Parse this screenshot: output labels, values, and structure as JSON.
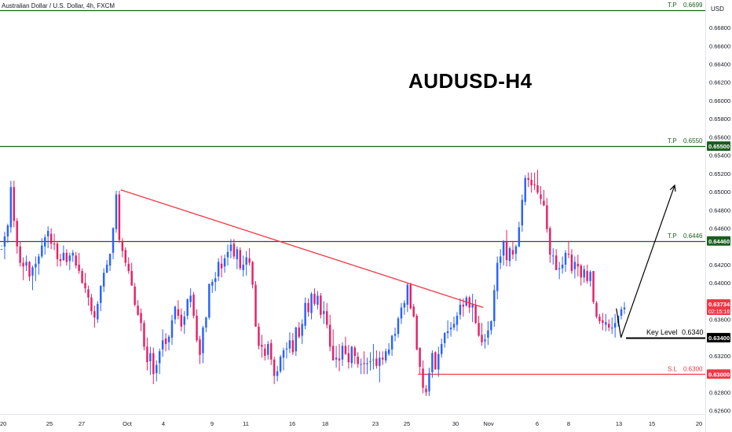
{
  "header": {
    "symbol": "Australian Dollar / U.S. Dollar, 4h, FXCM",
    "title": "AUDUSD-H4",
    "currency": "USD"
  },
  "colors": {
    "up": "#2962ff",
    "down": "#e91e63",
    "green_line": "#1b5e20",
    "red_line": "#f23645",
    "axis_text": "#131722",
    "label_dark": "#000000",
    "label_green": "#1b5e20",
    "label_red": "#f23645",
    "current": "#f23645"
  },
  "chart_data": {
    "type": "candlestick",
    "instrument": "AUDUSD",
    "timeframe": "4h",
    "ylim": [
      0.626,
      0.671
    ],
    "y_ticks": [
      "0.66800",
      "0.66600",
      "0.66400",
      "0.66200",
      "0.66000",
      "0.65800",
      "0.65600",
      "0.65400",
      "0.65200",
      "0.65000",
      "0.64800",
      "0.64600",
      "0.64200",
      "0.64000",
      "0.63800",
      "0.63600",
      "0.63200",
      "0.62800",
      "0.62600"
    ],
    "x_ticks": [
      "20",
      "25",
      "27",
      "Oct",
      "4",
      "9",
      "11",
      "16",
      "18",
      "23",
      "25",
      "30",
      "Nov",
      "6",
      "8",
      "13",
      "15",
      "20"
    ],
    "levels": [
      {
        "id": "tp3",
        "label": "T.P",
        "value_text": "0.6699",
        "price": 0.6699,
        "color": "green",
        "badge": ""
      },
      {
        "id": "tp2",
        "label": "T.P",
        "value_text": "0.6550",
        "price": 0.655,
        "color": "green",
        "badge": "0.65500"
      },
      {
        "id": "tp1",
        "label": "T.P",
        "value_text": "0.6446",
        "price": 0.6446,
        "color": "green",
        "badge": "0.64460"
      },
      {
        "id": "key",
        "label": "Key Level",
        "value_text": "0.6340",
        "price": 0.634,
        "color": "dark",
        "badge": "0.63400"
      },
      {
        "id": "sl",
        "label": "S.L",
        "value_text": "0.6300",
        "price": 0.63,
        "color": "red",
        "badge": "0.63000"
      }
    ],
    "current_price": {
      "value": "0.63734",
      "time_left": "02:15:16",
      "price": 0.63734
    },
    "trendline": {
      "start": [
        0.1,
        0.6502
      ],
      "end": [
        0.6853,
        0.6373
      ]
    },
    "sl_line": {
      "start_x": 0.5928
    },
    "projection": {
      "points": [
        [
          0.8739,
          0.6372
        ],
        [
          0.8804,
          0.634
        ],
        [
          0.9566,
          0.6507
        ]
      ]
    },
    "candles": [
      [
        0.6437,
        0.6441,
        0.644,
        0.6437
      ],
      [
        0.644,
        0.6456,
        0.6426,
        0.6451
      ],
      [
        0.6451,
        0.6465,
        0.6444,
        0.6463
      ],
      [
        0.6461,
        0.6512,
        0.6455,
        0.6505
      ],
      [
        0.6505,
        0.6512,
        0.6461,
        0.6468
      ],
      [
        0.6468,
        0.6471,
        0.6432,
        0.644
      ],
      [
        0.644,
        0.6445,
        0.6418,
        0.6422
      ],
      [
        0.6422,
        0.6428,
        0.6403,
        0.6418
      ],
      [
        0.6419,
        0.643,
        0.6413,
        0.6423
      ],
      [
        0.6423,
        0.6424,
        0.6402,
        0.6407
      ],
      [
        0.6408,
        0.6419,
        0.6392,
        0.6417
      ],
      [
        0.6417,
        0.6429,
        0.6402,
        0.6421
      ],
      [
        0.6421,
        0.6432,
        0.6409,
        0.6429
      ],
      [
        0.6429,
        0.6449,
        0.6427,
        0.6441
      ],
      [
        0.644,
        0.6453,
        0.6431,
        0.645
      ],
      [
        0.6451,
        0.6462,
        0.6438,
        0.6457
      ],
      [
        0.6454,
        0.646,
        0.6437,
        0.6443
      ],
      [
        0.6443,
        0.6454,
        0.6436,
        0.6442
      ],
      [
        0.6443,
        0.6446,
        0.6418,
        0.6426
      ],
      [
        0.6426,
        0.6432,
        0.6418,
        0.6424
      ],
      [
        0.6425,
        0.6441,
        0.6424,
        0.6433
      ],
      [
        0.6433,
        0.6437,
        0.6419,
        0.6423
      ],
      [
        0.6424,
        0.6433,
        0.6414,
        0.643
      ],
      [
        0.643,
        0.6436,
        0.6423,
        0.6433
      ],
      [
        0.643,
        0.6434,
        0.6416,
        0.6419
      ],
      [
        0.642,
        0.6433,
        0.641,
        0.6413
      ],
      [
        0.6413,
        0.6416,
        0.6399,
        0.64
      ],
      [
        0.64,
        0.6411,
        0.6389,
        0.6394
      ],
      [
        0.6393,
        0.6397,
        0.6375,
        0.6384
      ],
      [
        0.6384,
        0.6388,
        0.6365,
        0.6369
      ],
      [
        0.6369,
        0.6375,
        0.6351,
        0.6362
      ],
      [
        0.636,
        0.638,
        0.6356,
        0.6377
      ],
      [
        0.6378,
        0.6397,
        0.6369,
        0.6397
      ],
      [
        0.6396,
        0.6416,
        0.639,
        0.6411
      ],
      [
        0.6411,
        0.6425,
        0.6411,
        0.642
      ],
      [
        0.6419,
        0.6432,
        0.6413,
        0.6432
      ],
      [
        0.6433,
        0.6461,
        0.6426,
        0.646
      ],
      [
        0.6459,
        0.6501,
        0.6455,
        0.6497
      ],
      [
        0.6497,
        0.6501,
        0.6444,
        0.6447
      ],
      [
        0.6446,
        0.6449,
        0.6428,
        0.6435
      ],
      [
        0.6436,
        0.6439,
        0.6418,
        0.6422
      ],
      [
        0.6421,
        0.6428,
        0.641,
        0.6413
      ],
      [
        0.6413,
        0.6422,
        0.6397,
        0.6397
      ],
      [
        0.6396,
        0.64,
        0.6374,
        0.6376
      ],
      [
        0.6375,
        0.6381,
        0.6364,
        0.6365
      ],
      [
        0.6367,
        0.6372,
        0.6347,
        0.6356
      ],
      [
        0.6356,
        0.6359,
        0.6326,
        0.633
      ],
      [
        0.633,
        0.634,
        0.6304,
        0.6313
      ],
      [
        0.6314,
        0.633,
        0.6299,
        0.6323
      ],
      [
        0.6323,
        0.6329,
        0.6289,
        0.63
      ],
      [
        0.6301,
        0.6315,
        0.6292,
        0.631
      ],
      [
        0.6312,
        0.6328,
        0.63,
        0.6325
      ],
      [
        0.6327,
        0.6349,
        0.6319,
        0.6337
      ],
      [
        0.6339,
        0.6345,
        0.6325,
        0.6333
      ],
      [
        0.6335,
        0.6343,
        0.6326,
        0.6341
      ],
      [
        0.634,
        0.6365,
        0.6332,
        0.6359
      ],
      [
        0.636,
        0.6375,
        0.6355,
        0.6374
      ],
      [
        0.6371,
        0.6381,
        0.636,
        0.6364
      ],
      [
        0.6365,
        0.6372,
        0.6347,
        0.6352
      ],
      [
        0.6354,
        0.6369,
        0.6344,
        0.6363
      ],
      [
        0.6364,
        0.6383,
        0.636,
        0.6382
      ],
      [
        0.6379,
        0.6394,
        0.6373,
        0.6386
      ],
      [
        0.6387,
        0.639,
        0.6361,
        0.6364
      ],
      [
        0.6364,
        0.6371,
        0.6335,
        0.6337
      ],
      [
        0.6338,
        0.6342,
        0.6311,
        0.6321
      ],
      [
        0.6323,
        0.6353,
        0.6312,
        0.6351
      ],
      [
        0.6351,
        0.6363,
        0.6346,
        0.6362
      ],
      [
        0.6362,
        0.6399,
        0.636,
        0.6399
      ],
      [
        0.6397,
        0.6404,
        0.6389,
        0.6401
      ],
      [
        0.6401,
        0.6412,
        0.6391,
        0.6405
      ],
      [
        0.6407,
        0.6427,
        0.6402,
        0.6423
      ],
      [
        0.6421,
        0.643,
        0.6406,
        0.6416
      ],
      [
        0.6418,
        0.6431,
        0.6411,
        0.6427
      ],
      [
        0.6428,
        0.6442,
        0.6419,
        0.6434
      ],
      [
        0.6435,
        0.6448,
        0.6427,
        0.6442
      ],
      [
        0.6443,
        0.6448,
        0.6426,
        0.6429
      ],
      [
        0.6426,
        0.644,
        0.6415,
        0.6437
      ],
      [
        0.6436,
        0.6439,
        0.6414,
        0.6416
      ],
      [
        0.6414,
        0.643,
        0.6407,
        0.642
      ],
      [
        0.642,
        0.6435,
        0.6408,
        0.6428
      ],
      [
        0.6427,
        0.6438,
        0.6419,
        0.6422
      ],
      [
        0.6423,
        0.6424,
        0.6394,
        0.6398
      ],
      [
        0.6398,
        0.6402,
        0.6352,
        0.6352
      ],
      [
        0.6352,
        0.6356,
        0.6327,
        0.6331
      ],
      [
        0.6332,
        0.6343,
        0.6318,
        0.633
      ],
      [
        0.6328,
        0.6333,
        0.6315,
        0.632
      ],
      [
        0.6321,
        0.6336,
        0.6316,
        0.6333
      ],
      [
        0.6334,
        0.6338,
        0.631,
        0.6316
      ],
      [
        0.6316,
        0.6319,
        0.6289,
        0.6298
      ],
      [
        0.6298,
        0.6309,
        0.6292,
        0.6303
      ],
      [
        0.6303,
        0.6321,
        0.6301,
        0.6319
      ],
      [
        0.6318,
        0.6329,
        0.6304,
        0.6326
      ],
      [
        0.6327,
        0.6335,
        0.6317,
        0.6328
      ],
      [
        0.6328,
        0.6346,
        0.6323,
        0.6337
      ],
      [
        0.6337,
        0.6345,
        0.6321,
        0.6324
      ],
      [
        0.6325,
        0.6352,
        0.632,
        0.6351
      ],
      [
        0.6351,
        0.6357,
        0.6339,
        0.6341
      ],
      [
        0.6342,
        0.636,
        0.6333,
        0.6355
      ],
      [
        0.6353,
        0.6384,
        0.6349,
        0.6378
      ],
      [
        0.6378,
        0.6383,
        0.6363,
        0.6368
      ],
      [
        0.6367,
        0.639,
        0.636,
        0.6388
      ],
      [
        0.6388,
        0.6394,
        0.6375,
        0.6377
      ],
      [
        0.6376,
        0.6391,
        0.6371,
        0.6386
      ],
      [
        0.6386,
        0.6389,
        0.6361,
        0.6365
      ],
      [
        0.6366,
        0.638,
        0.6355,
        0.6369
      ],
      [
        0.6369,
        0.6378,
        0.635,
        0.6354
      ],
      [
        0.6354,
        0.6365,
        0.6325,
        0.633
      ],
      [
        0.6331,
        0.6349,
        0.6315,
        0.6315
      ],
      [
        0.6316,
        0.6331,
        0.6307,
        0.6318
      ],
      [
        0.6317,
        0.6333,
        0.6303,
        0.6315
      ],
      [
        0.6316,
        0.6335,
        0.6309,
        0.6331
      ],
      [
        0.6331,
        0.6341,
        0.6321,
        0.6322
      ],
      [
        0.6323,
        0.6332,
        0.6306,
        0.6313
      ],
      [
        0.6312,
        0.6331,
        0.6307,
        0.633
      ],
      [
        0.6329,
        0.6331,
        0.6311,
        0.632
      ],
      [
        0.6319,
        0.6324,
        0.6307,
        0.6311
      ],
      [
        0.6311,
        0.6317,
        0.63,
        0.6311
      ],
      [
        0.6312,
        0.6325,
        0.63,
        0.6311
      ],
      [
        0.6311,
        0.6318,
        0.63,
        0.6312
      ],
      [
        0.6314,
        0.6324,
        0.6304,
        0.6314
      ],
      [
        0.6316,
        0.6333,
        0.6305,
        0.6316
      ],
      [
        0.6317,
        0.6326,
        0.6306,
        0.6309
      ],
      [
        0.6309,
        0.6325,
        0.6291,
        0.6318
      ],
      [
        0.6318,
        0.6325,
        0.631,
        0.6316
      ],
      [
        0.6315,
        0.6328,
        0.6312,
        0.6325
      ],
      [
        0.6322,
        0.6334,
        0.632,
        0.6327
      ],
      [
        0.6327,
        0.6343,
        0.632,
        0.6342
      ],
      [
        0.6342,
        0.6351,
        0.6336,
        0.6344
      ],
      [
        0.6344,
        0.6363,
        0.634,
        0.6361
      ],
      [
        0.6361,
        0.6378,
        0.6355,
        0.6373
      ],
      [
        0.6373,
        0.6381,
        0.6365,
        0.6378
      ],
      [
        0.6376,
        0.64,
        0.6368,
        0.6398
      ],
      [
        0.6398,
        0.64,
        0.6371,
        0.6372
      ],
      [
        0.6374,
        0.6377,
        0.6362,
        0.6363
      ],
      [
        0.6364,
        0.6366,
        0.6326,
        0.6327
      ],
      [
        0.6329,
        0.6329,
        0.63,
        0.6308
      ],
      [
        0.6306,
        0.6315,
        0.6279,
        0.6285
      ],
      [
        0.6284,
        0.6288,
        0.6276,
        0.628
      ],
      [
        0.6281,
        0.6307,
        0.6276,
        0.6301
      ],
      [
        0.6302,
        0.6326,
        0.6296,
        0.6323
      ],
      [
        0.6324,
        0.6325,
        0.6305,
        0.6305
      ],
      [
        0.6305,
        0.633,
        0.6297,
        0.6322
      ],
      [
        0.6322,
        0.6339,
        0.6318,
        0.6333
      ],
      [
        0.6334,
        0.6346,
        0.6329,
        0.6345
      ],
      [
        0.6345,
        0.6359,
        0.6339,
        0.6347
      ],
      [
        0.6349,
        0.6357,
        0.6341,
        0.6351
      ],
      [
        0.6351,
        0.6363,
        0.6348,
        0.6355
      ],
      [
        0.6354,
        0.6368,
        0.6347,
        0.6364
      ],
      [
        0.6365,
        0.6383,
        0.636,
        0.6376
      ],
      [
        0.6376,
        0.6383,
        0.6363,
        0.6374
      ],
      [
        0.6375,
        0.6386,
        0.6374,
        0.6384
      ],
      [
        0.6384,
        0.6386,
        0.6367,
        0.6373
      ],
      [
        0.6373,
        0.6388,
        0.6357,
        0.6377
      ],
      [
        0.6376,
        0.6382,
        0.6355,
        0.6356
      ],
      [
        0.6356,
        0.6364,
        0.6341,
        0.6342
      ],
      [
        0.6343,
        0.6356,
        0.6331,
        0.6335
      ],
      [
        0.6336,
        0.6344,
        0.6328,
        0.6338
      ],
      [
        0.634,
        0.6358,
        0.6332,
        0.6348
      ],
      [
        0.6348,
        0.6359,
        0.6343,
        0.6358
      ],
      [
        0.6358,
        0.6398,
        0.6352,
        0.6392
      ],
      [
        0.6391,
        0.6429,
        0.6382,
        0.6422
      ],
      [
        0.6422,
        0.6437,
        0.6415,
        0.6429
      ],
      [
        0.643,
        0.6447,
        0.6419,
        0.6445
      ],
      [
        0.6445,
        0.6458,
        0.6418,
        0.6425
      ],
      [
        0.6424,
        0.644,
        0.6418,
        0.6438
      ],
      [
        0.6436,
        0.6446,
        0.6426,
        0.6431
      ],
      [
        0.6432,
        0.6442,
        0.6424,
        0.644
      ],
      [
        0.644,
        0.6467,
        0.6439,
        0.6461
      ],
      [
        0.6463,
        0.6497,
        0.6456,
        0.6491
      ],
      [
        0.6489,
        0.6518,
        0.6485,
        0.6515
      ],
      [
        0.6515,
        0.6521,
        0.6505,
        0.6513
      ],
      [
        0.6513,
        0.6521,
        0.6499,
        0.6507
      ],
      [
        0.6508,
        0.6521,
        0.6502,
        0.6507
      ],
      [
        0.6507,
        0.6524,
        0.6497,
        0.6499
      ],
      [
        0.6497,
        0.6506,
        0.6486,
        0.6492
      ],
      [
        0.649,
        0.6502,
        0.6484,
        0.6485
      ],
      [
        0.6485,
        0.6493,
        0.6455,
        0.6459
      ],
      [
        0.646,
        0.6462,
        0.6422,
        0.6431
      ],
      [
        0.643,
        0.6438,
        0.642,
        0.643
      ],
      [
        0.643,
        0.6437,
        0.6414,
        0.6414
      ],
      [
        0.6415,
        0.6423,
        0.6404,
        0.6416
      ],
      [
        0.6416,
        0.6429,
        0.641,
        0.642
      ],
      [
        0.642,
        0.6436,
        0.6412,
        0.6433
      ],
      [
        0.6432,
        0.6446,
        0.6427,
        0.6431
      ],
      [
        0.6431,
        0.6437,
        0.641,
        0.6413
      ],
      [
        0.6415,
        0.6429,
        0.6405,
        0.6423
      ],
      [
        0.6421,
        0.6431,
        0.6407,
        0.6418
      ],
      [
        0.6419,
        0.6421,
        0.6397,
        0.6406
      ],
      [
        0.6406,
        0.6419,
        0.64,
        0.6415
      ],
      [
        0.6413,
        0.642,
        0.6399,
        0.6402
      ],
      [
        0.6402,
        0.6414,
        0.6396,
        0.6412
      ],
      [
        0.6413,
        0.6413,
        0.6377,
        0.6379
      ],
      [
        0.6378,
        0.638,
        0.6361,
        0.6363
      ],
      [
        0.6363,
        0.6366,
        0.6355,
        0.6358
      ],
      [
        0.6359,
        0.6367,
        0.6348,
        0.6356
      ],
      [
        0.6354,
        0.6366,
        0.6347,
        0.6357
      ],
      [
        0.6355,
        0.636,
        0.6347,
        0.6351
      ],
      [
        0.635,
        0.6362,
        0.6344,
        0.6351
      ],
      [
        0.6351,
        0.6366,
        0.634,
        0.6356
      ],
      [
        0.6356,
        0.6364,
        0.6352,
        0.6364
      ],
      [
        0.6364,
        0.6374,
        0.636,
        0.6371
      ],
      [
        0.6371,
        0.6379,
        0.6366,
        0.6373
      ]
    ]
  }
}
